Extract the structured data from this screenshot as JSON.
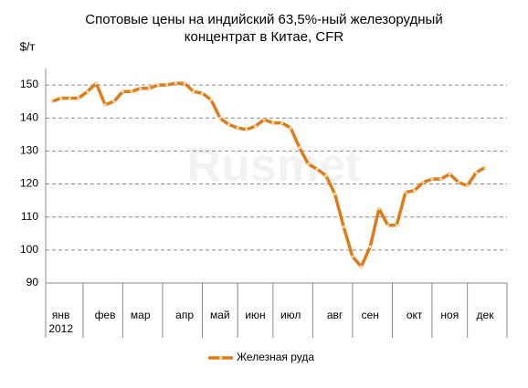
{
  "chart_data": {
    "type": "line",
    "title": "Спотовые цены на индийский  63,5%-ный железорудный\nконцентрат в Китае, CFR",
    "y_label": "$/т",
    "watermark": "Rusmet",
    "categories": [
      null,
      "янв\n2012",
      null,
      null,
      null,
      null,
      "фев",
      null,
      null,
      null,
      "мар",
      null,
      null,
      null,
      null,
      "апр",
      null,
      null,
      null,
      "май",
      null,
      null,
      null,
      "июн",
      null,
      null,
      null,
      "июл",
      null,
      null,
      null,
      null,
      "авг",
      null,
      null,
      null,
      "сен",
      null,
      null,
      null,
      null,
      "окт",
      null,
      null,
      null,
      "ноя",
      null,
      null,
      null,
      "дек"
    ],
    "series": [
      {
        "name": "Железная руда",
        "color": "#e07b1a",
        "marker_color": "#f3d9a0",
        "values": [
          145,
          146,
          146,
          146,
          148,
          150.5,
          144,
          145,
          148,
          148,
          149,
          149,
          150,
          150,
          150.5,
          150.5,
          148,
          147.5,
          145.5,
          140,
          138,
          137,
          136.5,
          137.5,
          139.5,
          138.5,
          138.5,
          137,
          131,
          126,
          124.5,
          122.5,
          117,
          107,
          98,
          95,
          101,
          112.5,
          107.5,
          107.5,
          117.5,
          118,
          120.5,
          121.5,
          121.5,
          123,
          120.5,
          119.5,
          123.5,
          125
        ]
      }
    ],
    "ylim": [
      90,
      155
    ],
    "yticks": [
      90,
      100,
      110,
      120,
      130,
      140,
      150
    ],
    "grid": true,
    "legend": "bottom"
  }
}
